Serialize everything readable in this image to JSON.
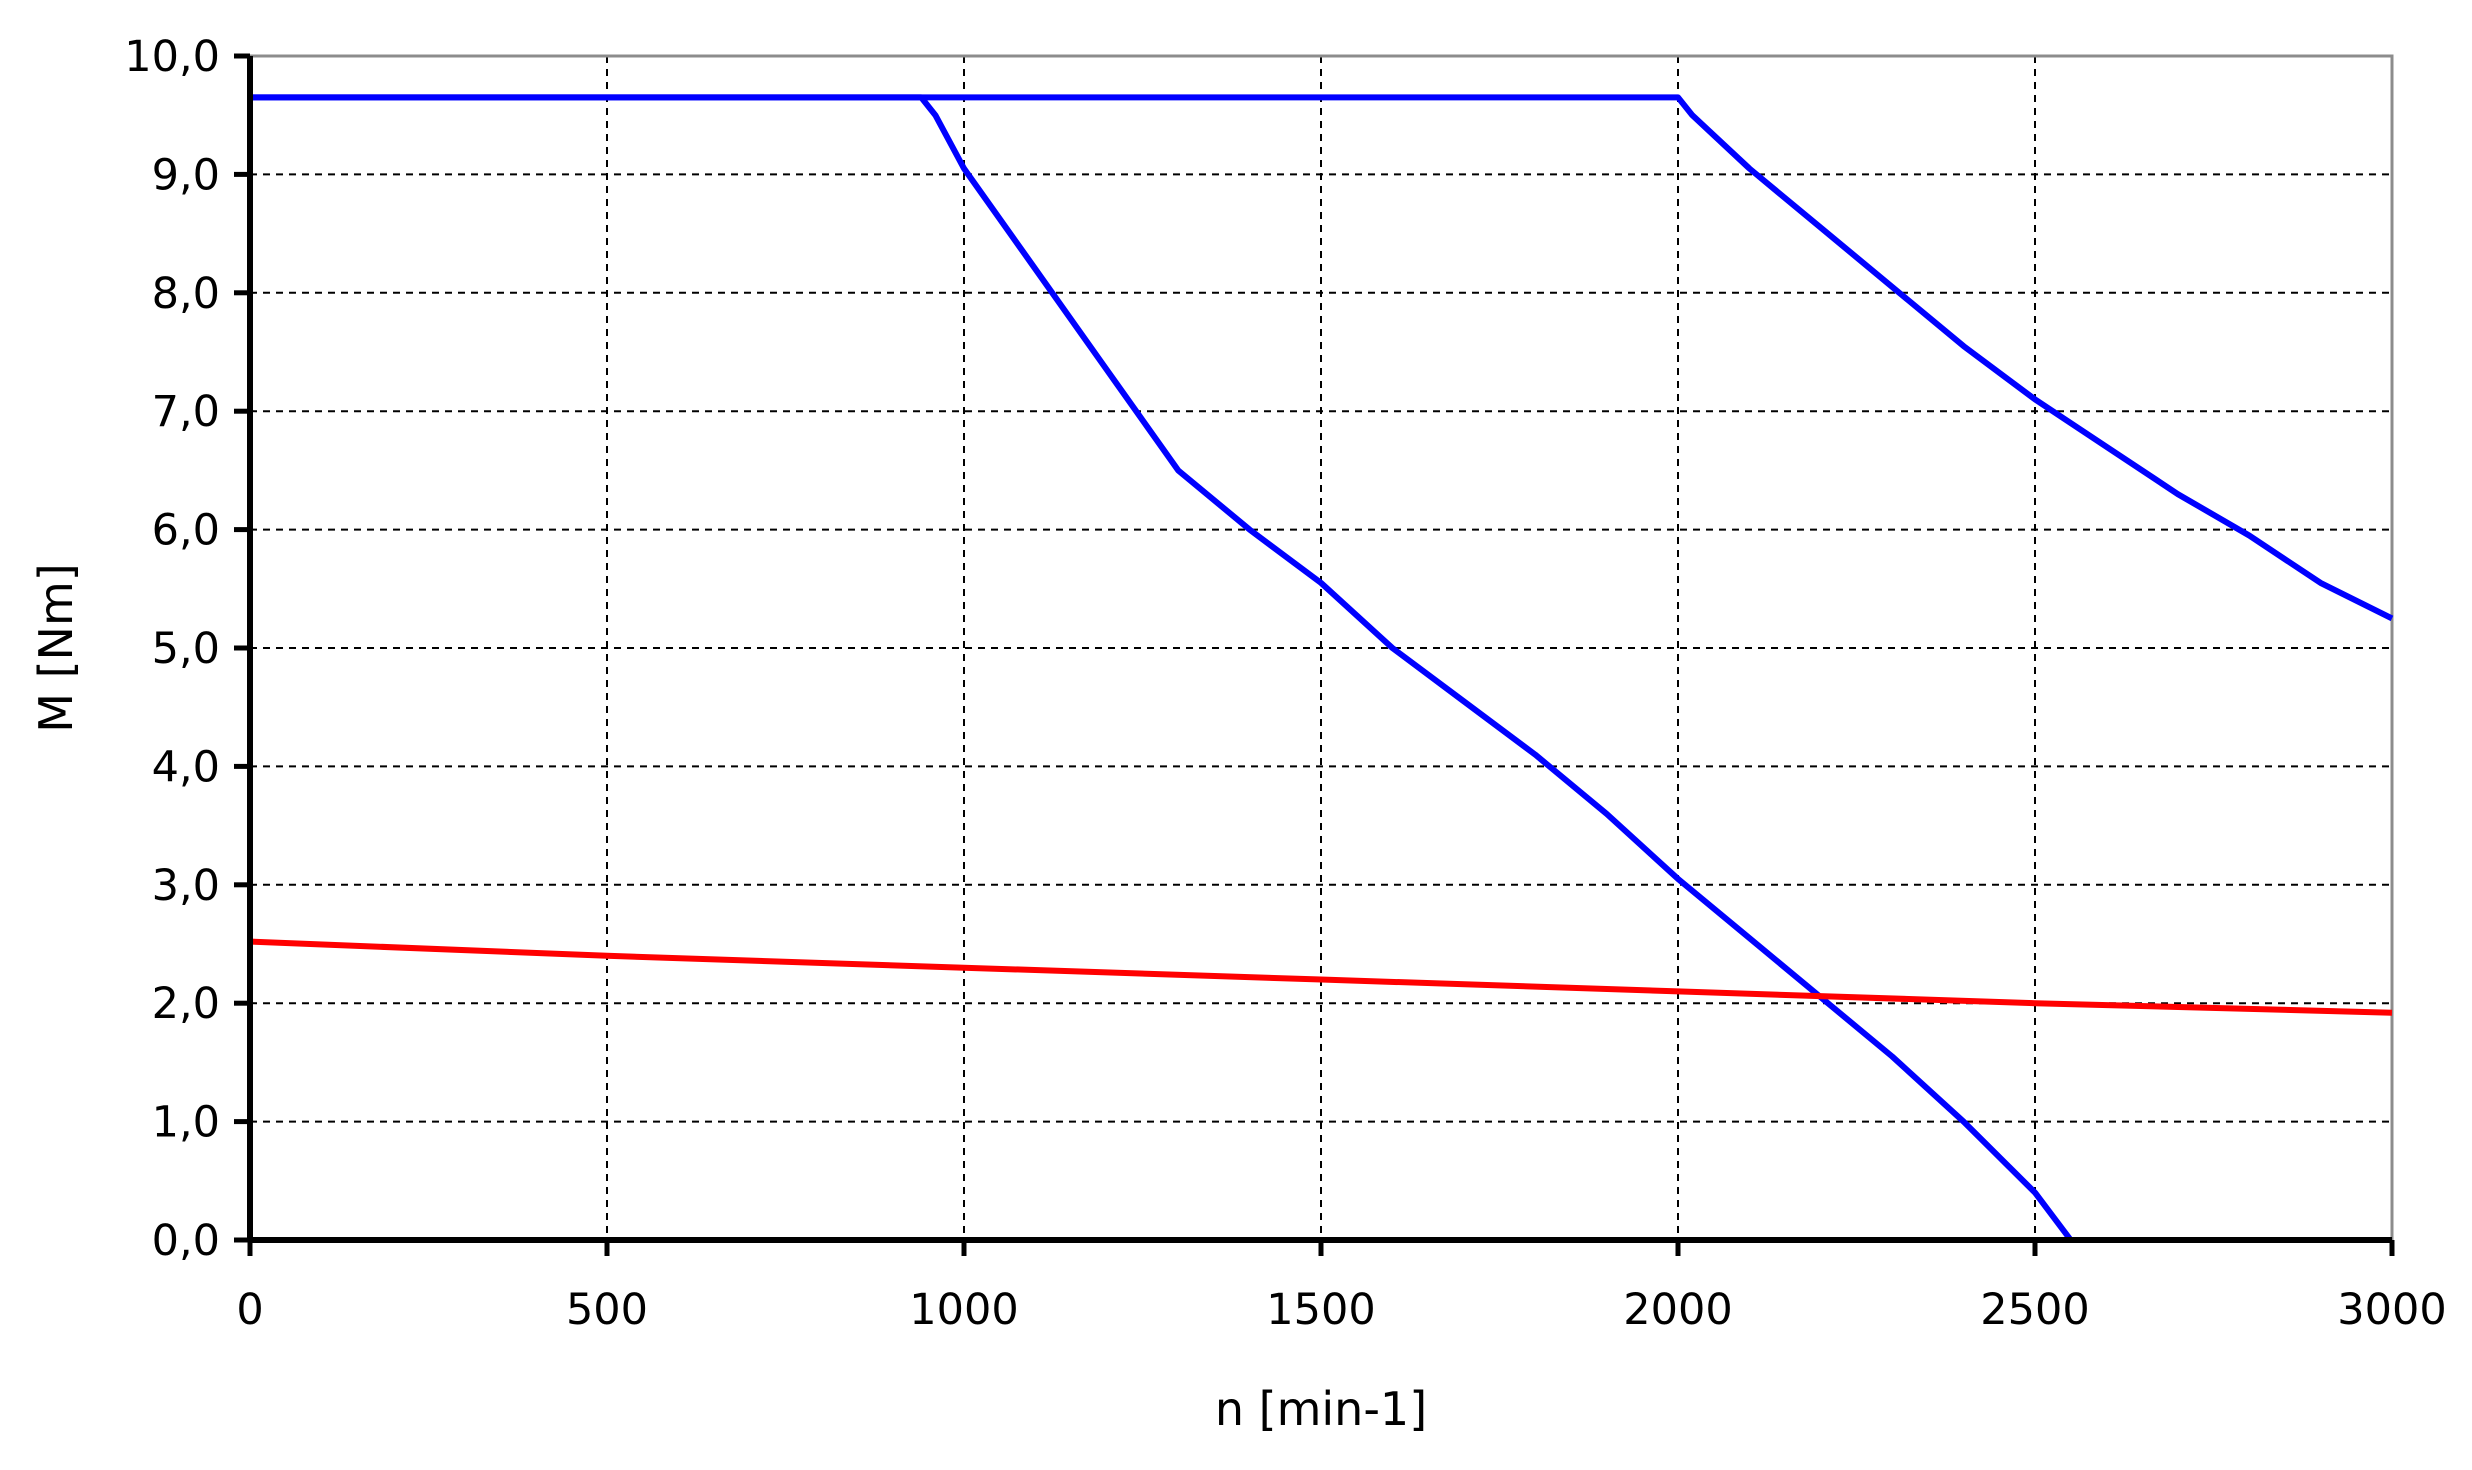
{
  "chart_data": {
    "type": "line",
    "title": "",
    "xlabel": "n [min-1]",
    "ylabel": "M [Nm]",
    "xlim": [
      0,
      3000
    ],
    "ylim": [
      0,
      10
    ],
    "x_ticks": [
      "0",
      "500",
      "1000",
      "1500",
      "2000",
      "2500",
      "3000"
    ],
    "y_ticks": [
      "0,0",
      "1,0",
      "2,0",
      "3,0",
      "4,0",
      "5,0",
      "6,0",
      "7,0",
      "8,0",
      "9,0",
      "10,0"
    ],
    "grid": true,
    "legend": "none",
    "series": [
      {
        "color": "#0000ff",
        "x": [
          0,
          940,
          960,
          1000,
          1100,
          1200,
          1300,
          1400,
          1500,
          1600,
          1700,
          1800,
          1900,
          2000,
          2100,
          2200,
          2300,
          2400,
          2500,
          2550
        ],
        "y": [
          9.65,
          9.65,
          9.5,
          9.05,
          8.2,
          7.35,
          6.5,
          6.0,
          5.55,
          5.0,
          4.55,
          4.1,
          3.6,
          3.05,
          2.55,
          2.05,
          1.55,
          1.0,
          0.4,
          0.0
        ]
      },
      {
        "color": "#0000ff",
        "x": [
          0,
          2000,
          2020,
          2100,
          2200,
          2300,
          2400,
          2500,
          2600,
          2700,
          2800,
          2900,
          3000
        ],
        "y": [
          9.65,
          9.65,
          9.5,
          9.05,
          8.55,
          8.05,
          7.55,
          7.1,
          6.7,
          6.3,
          5.95,
          5.55,
          5.25
        ]
      },
      {
        "color": "#ff0000",
        "x": [
          0,
          500,
          1000,
          1500,
          2000,
          2500,
          3000
        ],
        "y": [
          2.52,
          2.4,
          2.3,
          2.2,
          2.1,
          2.0,
          1.92
        ]
      }
    ]
  }
}
